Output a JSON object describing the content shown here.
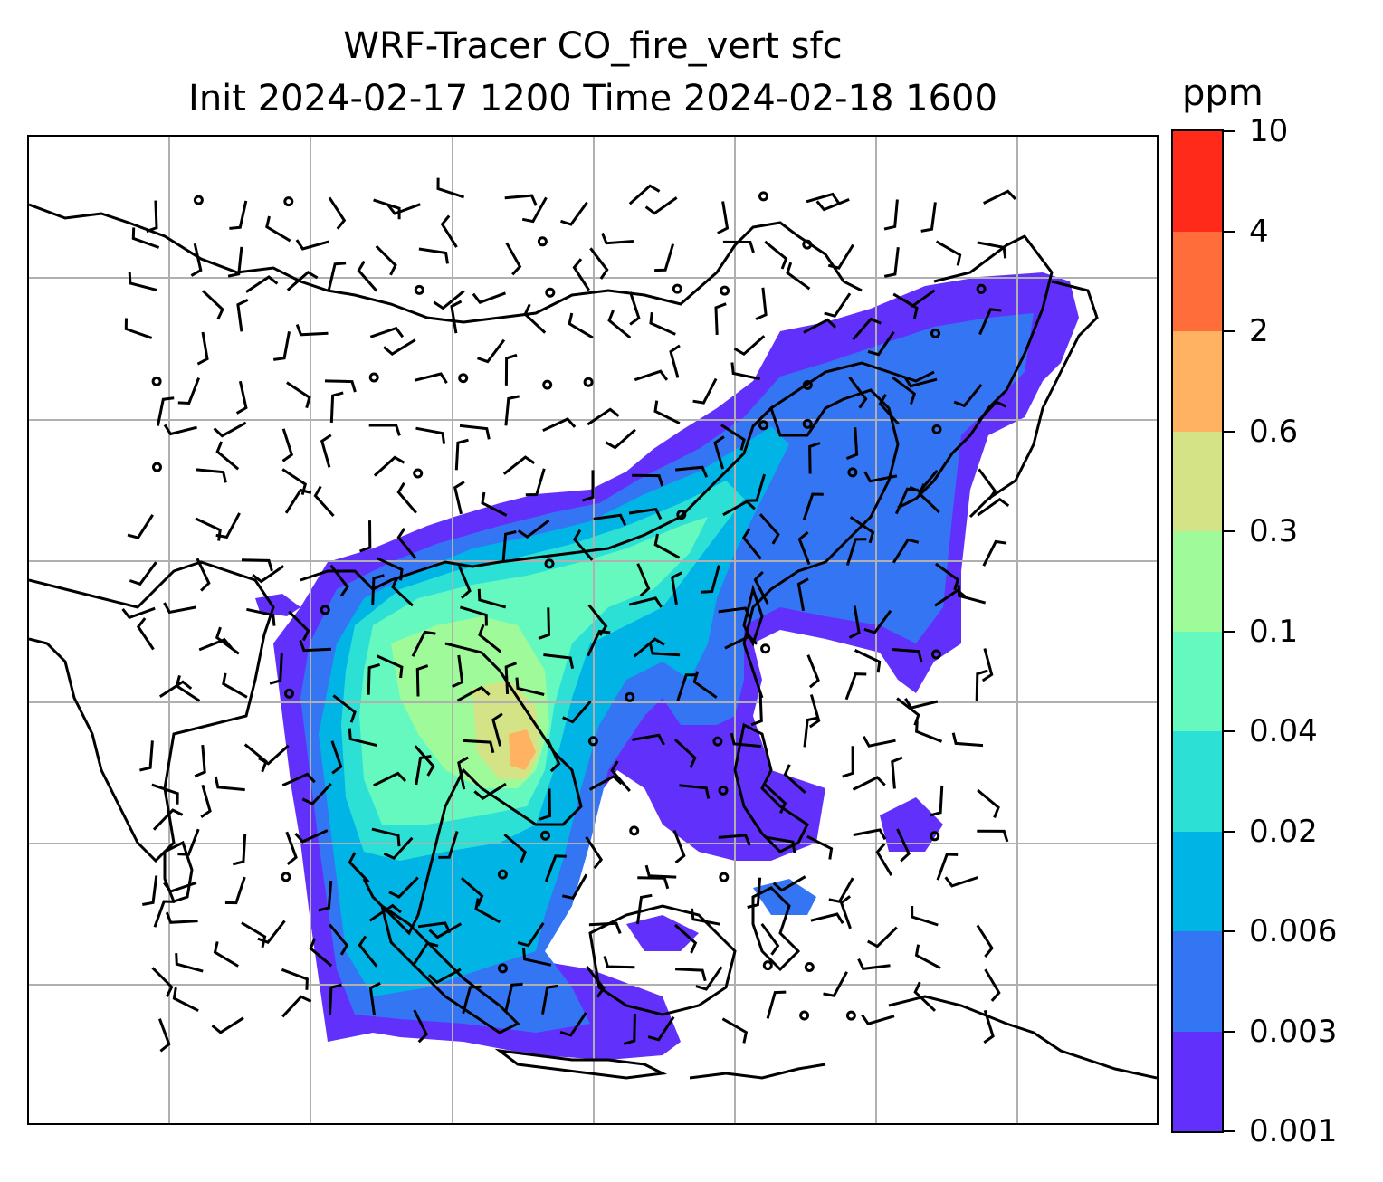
{
  "title": {
    "line1": "WRF-Tracer CO_fire_vert sfc",
    "line2": "Init 2024-02-17 1200 Time 2024-02-18 1600"
  },
  "colorbar": {
    "unit": "ppm",
    "levels": [
      "0.001",
      "0.003",
      "0.006",
      "0.02",
      "0.04",
      "0.1",
      "0.3",
      "0.6",
      "2",
      "4",
      "10"
    ],
    "colors": [
      "#6230fb",
      "#3475f3",
      "#01b4e6",
      "#2de0d6",
      "#66f9bf",
      "#9ffa9a",
      "#d4e386",
      "#ffb262",
      "#ff6d3a",
      "#ff2a19"
    ]
  },
  "map": {
    "gridlines": true,
    "grid_color": "#b0b0b0",
    "coastline_color": "#000000",
    "barb_color": "#000000"
  }
}
